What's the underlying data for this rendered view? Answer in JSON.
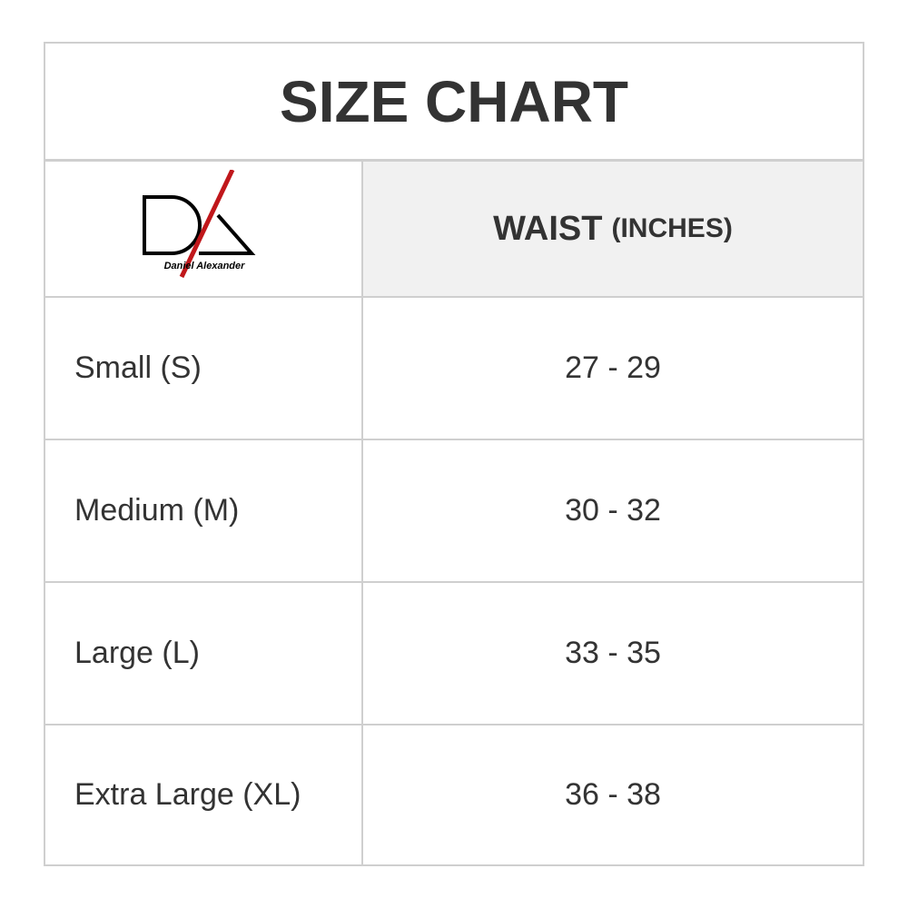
{
  "title": "SIZE CHART",
  "header": {
    "logo_text": "Daniel Alexander",
    "column_main": "WAIST",
    "column_unit": "(INCHES)"
  },
  "rows": [
    {
      "size": "Small (S)",
      "waist": "27 - 29"
    },
    {
      "size": "Medium (M)",
      "waist": "30 - 32"
    },
    {
      "size": "Large (L)",
      "waist": "33 - 35"
    },
    {
      "size": "Extra Large (XL)",
      "waist": "36 - 38"
    }
  ],
  "colors": {
    "logo_accent": "#c0171b",
    "border": "#cfcfcf",
    "header_bg": "#f1f1f1"
  }
}
